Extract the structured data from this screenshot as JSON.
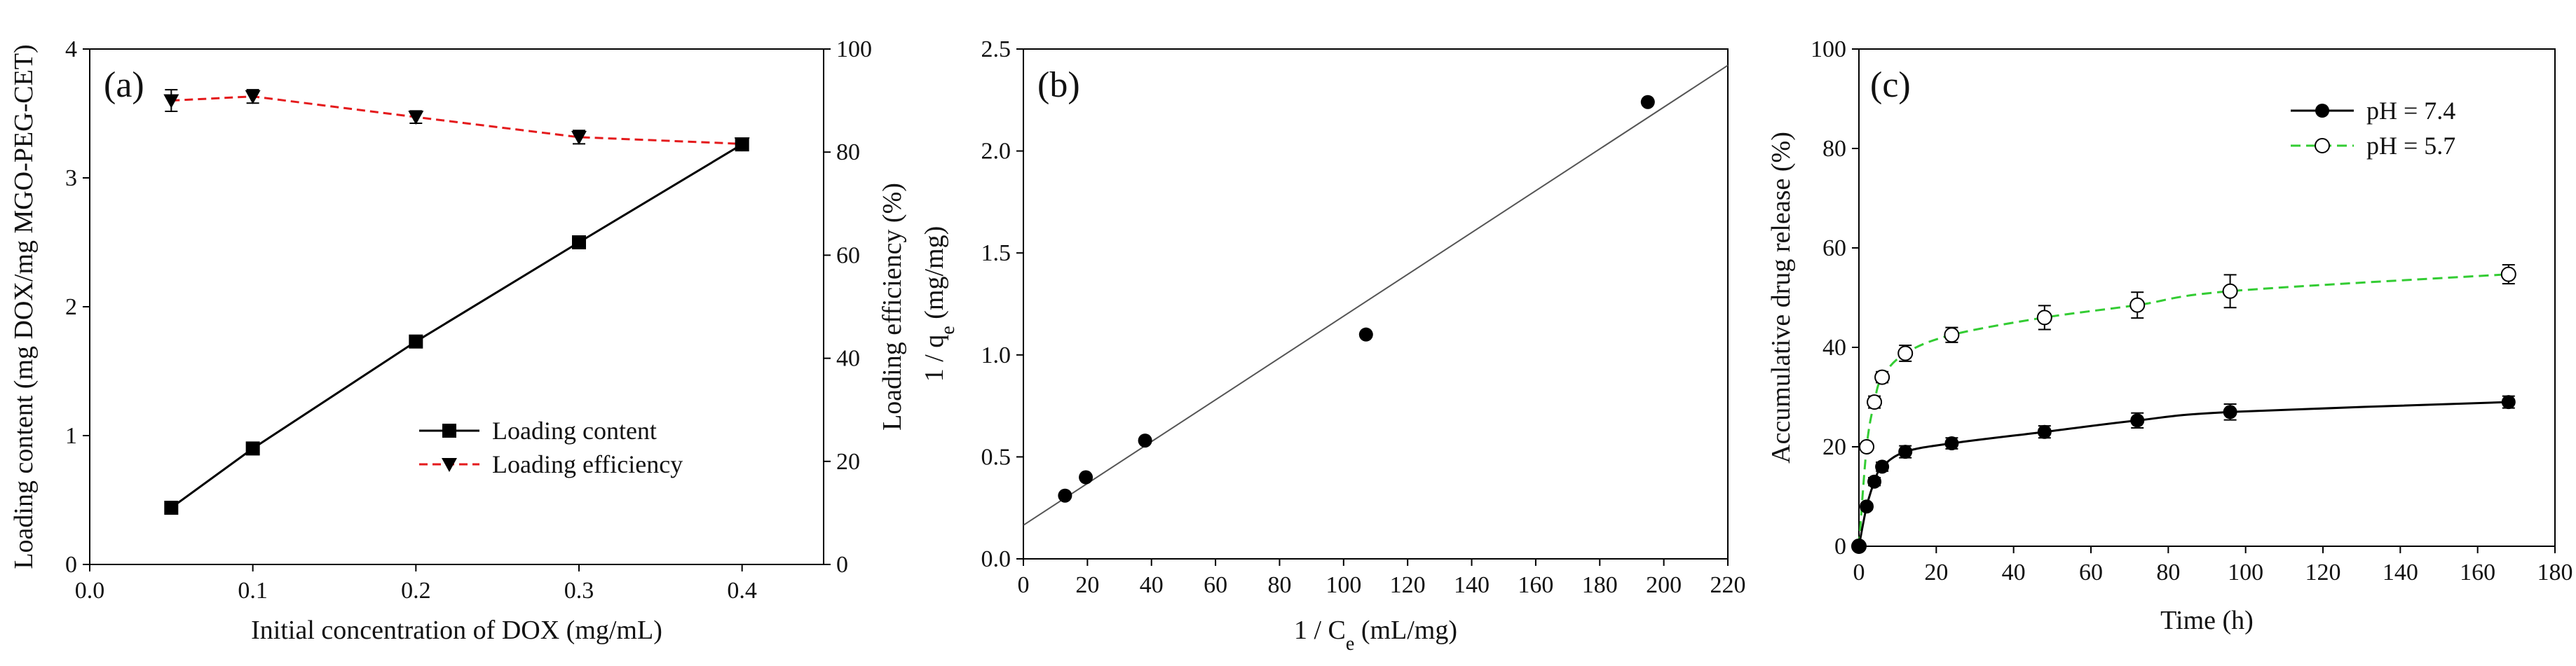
{
  "chart_data": [
    {
      "type": "line",
      "panel_label": "(a)",
      "xlabel": "Initial concentration of DOX (mg/mL)",
      "ylabel": "Loading content (mg DOX/mg MGO-PEG-CET)",
      "y2label": "Loading efficiency (%)",
      "xlim": [
        0.0,
        0.45
      ],
      "ylim": [
        0,
        4
      ],
      "y2lim": [
        0,
        100
      ],
      "xticks": [
        "0.0",
        "0.1",
        "0.2",
        "0.3",
        "0.4"
      ],
      "yticks": [
        "0",
        "1",
        "2",
        "3",
        "4"
      ],
      "y2ticks": [
        "0",
        "20",
        "40",
        "60",
        "80",
        "100"
      ],
      "legend_position": "lower-right",
      "series": [
        {
          "name": "Loading content",
          "axis": "left",
          "color": "#000000",
          "line_style": "solid",
          "marker": "square",
          "x": [
            0.05,
            0.1,
            0.2,
            0.3,
            0.4
          ],
          "y": [
            0.44,
            0.9,
            1.73,
            2.5,
            3.26
          ]
        },
        {
          "name": "Loading efficiency",
          "axis": "right",
          "color": "#e41a1c",
          "line_style": "dashed",
          "marker": "triangle-down",
          "x": [
            0.05,
            0.1,
            0.2,
            0.3,
            0.4
          ],
          "y": [
            90,
            90.8,
            86.8,
            82.9,
            81.6
          ],
          "err": [
            2.1,
            1.3,
            1.2,
            1.3,
            0.6
          ]
        }
      ]
    },
    {
      "type": "scatter",
      "panel_label": "(b)",
      "xlabel_parts": [
        "1 / C",
        "e",
        " (mL/mg)"
      ],
      "ylabel_parts": [
        "1 / q",
        "e",
        " (mg/mg)"
      ],
      "xlim": [
        0,
        220
      ],
      "ylim": [
        0,
        2.5
      ],
      "xticks": [
        "0",
        "20",
        "40",
        "60",
        "80",
        "100",
        "120",
        "140",
        "160",
        "180",
        "200",
        "220"
      ],
      "yticks": [
        "0.0",
        "0.5",
        "1.0",
        "1.5",
        "2.0",
        "2.5"
      ],
      "fit_line": {
        "x": [
          0,
          220
        ],
        "y": [
          0.165,
          2.42
        ]
      },
      "series": [
        {
          "marker": "circle-filled",
          "color": "#000000",
          "x": [
            13,
            19.5,
            38,
            107,
            195
          ],
          "y": [
            0.31,
            0.4,
            0.58,
            1.1,
            2.24
          ]
        }
      ]
    },
    {
      "type": "line",
      "panel_label": "(c)",
      "xlabel": "Time (h)",
      "ylabel": "Accumulative drug release (%)",
      "xlim": [
        0,
        180
      ],
      "ylim": [
        0,
        100
      ],
      "xticks": [
        "0",
        "20",
        "40",
        "60",
        "80",
        "100",
        "120",
        "140",
        "160",
        "180"
      ],
      "yticks": [
        "0",
        "20",
        "40",
        "60",
        "80",
        "100"
      ],
      "legend_position": "top-right",
      "series": [
        {
          "name": "pH = 7.4",
          "color": "#000000",
          "line_style": "solid",
          "marker": "circle-filled",
          "x": [
            0,
            2,
            4,
            6,
            12,
            24,
            48,
            72,
            96,
            168
          ],
          "y": [
            0,
            8,
            13,
            16,
            19,
            20.7,
            23,
            25.3,
            27,
            29
          ],
          "err": [
            0,
            0.6,
            0.8,
            0.9,
            1.2,
            1.1,
            1.2,
            1.5,
            1.6,
            1.2
          ]
        },
        {
          "name": "pH = 5.7",
          "color": "#33cc33",
          "line_style": "dashed",
          "marker": "circle-open",
          "x": [
            0,
            2,
            4,
            6,
            12,
            24,
            48,
            72,
            96,
            168
          ],
          "y": [
            0,
            20,
            29,
            34,
            38.8,
            42.5,
            46,
            48.5,
            51.3,
            54.7
          ],
          "err": [
            0,
            0.7,
            1.2,
            1.1,
            1.6,
            1.5,
            2.4,
            2.6,
            3.3,
            1.9
          ]
        }
      ]
    }
  ]
}
